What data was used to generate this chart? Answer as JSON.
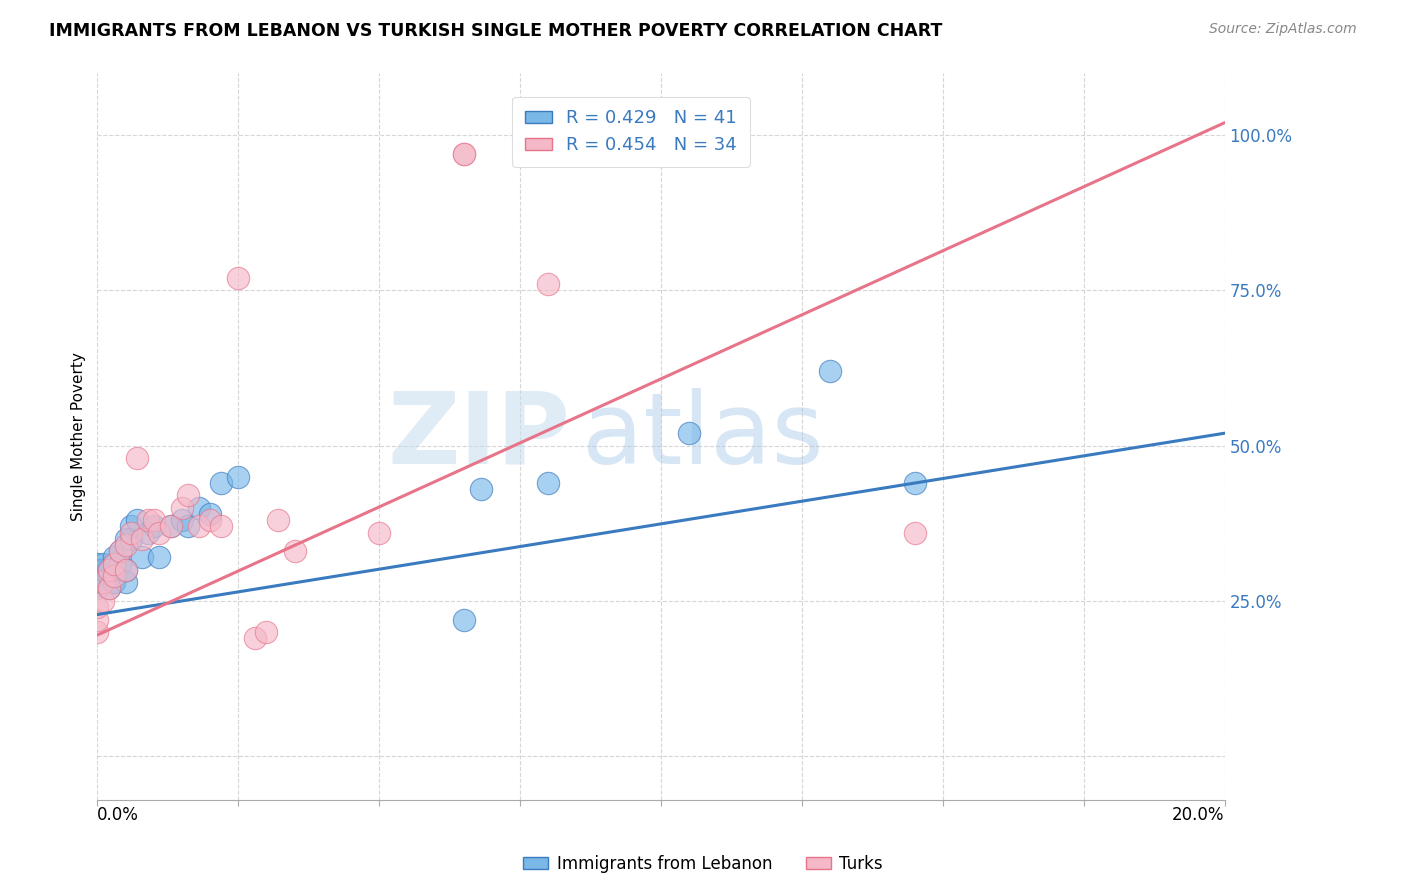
{
  "title": "IMMIGRANTS FROM LEBANON VS TURKISH SINGLE MOTHER POVERTY CORRELATION CHART",
  "source": "Source: ZipAtlas.com",
  "ylabel": "Single Mother Poverty",
  "y_ticks": [
    0.0,
    0.25,
    0.5,
    0.75,
    1.0
  ],
  "y_tick_labels": [
    "",
    "25.0%",
    "50.0%",
    "75.0%",
    "100.0%"
  ],
  "xlim": [
    0.0,
    0.2
  ],
  "ylim": [
    -0.07,
    1.1
  ],
  "legend1_r": "0.429",
  "legend1_n": "41",
  "legend2_r": "0.454",
  "legend2_n": "34",
  "color_lebanon": "#7ab8e8",
  "color_turks": "#f4b8c8",
  "color_line_lebanon": "#3a7abf",
  "color_line_turks": "#e8748a",
  "watermark_zip": "ZIP",
  "watermark_atlas": "atlas",
  "lebanon_x": [
    0.0,
    0.0,
    0.0,
    0.0,
    0.0,
    0.001,
    0.001,
    0.001,
    0.001,
    0.002,
    0.002,
    0.002,
    0.003,
    0.003,
    0.003,
    0.003,
    0.004,
    0.004,
    0.005,
    0.005,
    0.005,
    0.006,
    0.006,
    0.007,
    0.008,
    0.009,
    0.01,
    0.011,
    0.013,
    0.015,
    0.016,
    0.018,
    0.02,
    0.022,
    0.025,
    0.065,
    0.068,
    0.08,
    0.105,
    0.13,
    0.145
  ],
  "lebanon_y": [
    0.27,
    0.28,
    0.29,
    0.31,
    0.3,
    0.28,
    0.29,
    0.3,
    0.31,
    0.27,
    0.29,
    0.3,
    0.28,
    0.3,
    0.31,
    0.32,
    0.31,
    0.33,
    0.28,
    0.3,
    0.35,
    0.35,
    0.37,
    0.38,
    0.32,
    0.36,
    0.37,
    0.32,
    0.37,
    0.38,
    0.37,
    0.4,
    0.39,
    0.44,
    0.45,
    0.22,
    0.43,
    0.44,
    0.52,
    0.62,
    0.44
  ],
  "turks_x": [
    0.0,
    0.0,
    0.0,
    0.001,
    0.001,
    0.002,
    0.002,
    0.003,
    0.003,
    0.004,
    0.005,
    0.005,
    0.006,
    0.007,
    0.008,
    0.009,
    0.01,
    0.011,
    0.013,
    0.015,
    0.016,
    0.018,
    0.02,
    0.022,
    0.025,
    0.028,
    0.03,
    0.032,
    0.035,
    0.05,
    0.065,
    0.065,
    0.08,
    0.145
  ],
  "turks_y": [
    0.2,
    0.22,
    0.24,
    0.25,
    0.28,
    0.27,
    0.3,
    0.29,
    0.31,
    0.33,
    0.3,
    0.34,
    0.36,
    0.48,
    0.35,
    0.38,
    0.38,
    0.36,
    0.37,
    0.4,
    0.42,
    0.37,
    0.38,
    0.37,
    0.77,
    0.19,
    0.2,
    0.38,
    0.33,
    0.36,
    0.97,
    0.97,
    0.76,
    0.36
  ],
  "line_leb_x0": 0.0,
  "line_leb_y0": 0.228,
  "line_leb_x1": 0.2,
  "line_leb_y1": 0.52,
  "line_turks_x0": 0.0,
  "line_turks_y0": 0.195,
  "line_turks_x1": 0.2,
  "line_turks_y1": 1.02
}
